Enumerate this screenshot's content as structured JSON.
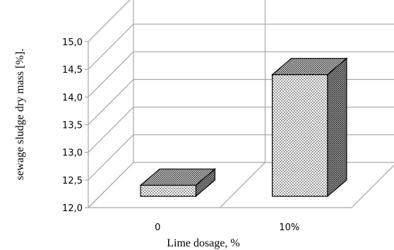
{
  "chart_data": {
    "type": "bar",
    "style": "3d-column",
    "categories": [
      "0",
      "10%"
    ],
    "values": [
      12.2,
      14.2
    ],
    "xlabel": "Lime dosage, %",
    "ylabel": "sewage sludge dry mass [%].",
    "ylim": [
      12.0,
      15.0
    ],
    "yticks": [
      "12,0",
      "12,5",
      "13,0",
      "13,5",
      "14,0",
      "14,5",
      "15,0"
    ],
    "grid": true,
    "legend": "none",
    "bar_fill": "dotted",
    "colors": {
      "grid": "#a6a6a6",
      "bar_stroke": "#000000",
      "bar_face": "#ffffff",
      "bar_dots": "#000000"
    }
  }
}
